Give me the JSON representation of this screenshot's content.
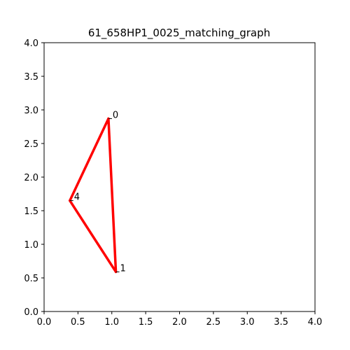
{
  "chart_data": {
    "type": "line",
    "title": "61_658HP1_0025_matching_graph",
    "xlabel": "",
    "ylabel": "",
    "xlim": [
      0,
      4
    ],
    "ylim": [
      0,
      4
    ],
    "x_ticks": [
      "0.0",
      "0.5",
      "1.0",
      "1.5",
      "2.0",
      "2.5",
      "3.0",
      "3.5",
      "4.0"
    ],
    "y_ticks": [
      "0.0",
      "0.5",
      "1.0",
      "1.5",
      "2.0",
      "2.5",
      "3.0",
      "3.5",
      "4.0"
    ],
    "grid": false,
    "edge_color": "#ff0000",
    "nodes": [
      {
        "id": "0",
        "x": 0.95,
        "y": 2.87
      },
      {
        "id": "1",
        "x": 1.06,
        "y": 0.59
      },
      {
        "id": "4",
        "x": 0.38,
        "y": 1.65
      }
    ],
    "edges": [
      [
        "0",
        "1"
      ],
      [
        "1",
        "4"
      ],
      [
        "4",
        "0"
      ]
    ]
  }
}
